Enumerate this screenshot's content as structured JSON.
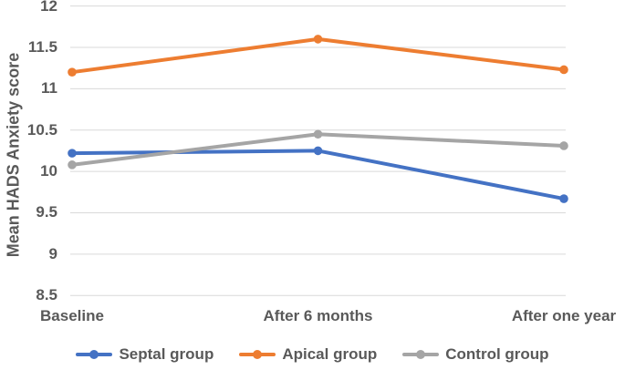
{
  "chart_data": {
    "type": "line",
    "title": "",
    "xlabel": "",
    "ylabel": "Mean HADS Anxiety score",
    "categories": [
      "Baseline",
      "After 6 months",
      "After one year"
    ],
    "series": [
      {
        "name": "Septal group",
        "color": "#4472C4",
        "values": [
          10.22,
          10.25,
          9.67
        ]
      },
      {
        "name": "Apical group",
        "color": "#ED7D31",
        "values": [
          11.2,
          11.6,
          11.23
        ]
      },
      {
        "name": "Control group",
        "color": "#A5A5A5",
        "values": [
          10.08,
          10.45,
          10.31
        ]
      }
    ],
    "ylim": [
      8.5,
      12
    ],
    "ytick_step": 0.5,
    "yticks": [
      "12",
      "11.5",
      "11",
      "10.5",
      "10",
      "9.5",
      "9",
      "8.5"
    ],
    "grid": true,
    "gridline_color": "#D9D9D9",
    "text_color": "#595959",
    "legend_position": "bottom",
    "marker": "circle"
  }
}
